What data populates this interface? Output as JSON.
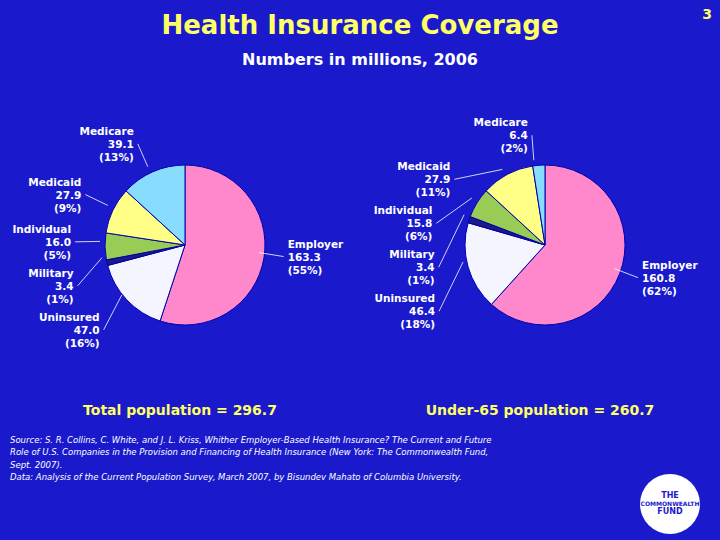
{
  "title": "Health Insurance Coverage",
  "subtitle": "Numbers in millions, 2006",
  "slide_number": "3",
  "source": "Source: S. R. Collins, C. White, and J. L. Kriss, Whither Employer-Based Health Insurance? The Current and Future\nRole of U.S. Companies in the Provision and Financing of Health Insurance (New York: The Commonwealth Fund,\nSept. 2007).\nData: Analysis of the Current Population Survey, March 2007, by Bisundev Mahato of Columbia University.",
  "logo": [
    "THE",
    "COMMONWEALTH",
    "FUND"
  ],
  "chart_data": [
    {
      "type": "pie",
      "title": "Total population = 296.7",
      "categories": [
        "Employer",
        "Uninsured",
        "Military",
        "Individual",
        "Medicaid",
        "Medicare"
      ],
      "values": [
        163.3,
        47.0,
        3.4,
        16.0,
        27.9,
        39.1
      ],
      "value_labels": [
        "163.3",
        "47.0",
        "3.4",
        "16.0",
        "27.9",
        "39.1"
      ],
      "shares": [
        55,
        16,
        1,
        5,
        9,
        13
      ],
      "share_labels": [
        "(55%)",
        "(16%)",
        "(1%)",
        "(5%)",
        "(9%)",
        "(13%)"
      ],
      "colors": [
        "#ff88cc",
        "#f5f5ff",
        "#1a1a88",
        "#99cc55",
        "#ffff88",
        "#88ddff"
      ],
      "data_labels": true
    },
    {
      "type": "pie",
      "title": "Under-65 population = 260.7",
      "categories": [
        "Employer",
        "Uninsured",
        "Military",
        "Individual",
        "Medicaid",
        "Medicare"
      ],
      "values": [
        160.8,
        46.4,
        3.4,
        15.8,
        27.9,
        6.4
      ],
      "value_labels": [
        "160.8",
        "46.4",
        "3.4",
        "15.8",
        "27.9",
        "6.4"
      ],
      "shares": [
        62,
        18,
        1,
        6,
        11,
        2
      ],
      "share_labels": [
        "(62%)",
        "(18%)",
        "(1%)",
        "(6%)",
        "(11%)",
        "(2%)"
      ],
      "colors": [
        "#ff88cc",
        "#f5f5ff",
        "#1a1a88",
        "#99cc55",
        "#ffff88",
        "#88ddff"
      ],
      "data_labels": true
    }
  ]
}
